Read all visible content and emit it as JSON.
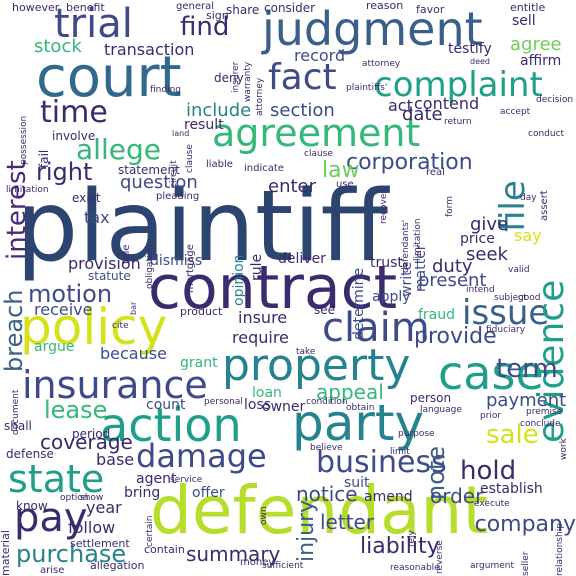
{
  "palette": {
    "navy": "#2b4570",
    "deep_purple": "#3b2a6e",
    "purple": "#482878",
    "indigo": "#3e4a89",
    "blue": "#31688e",
    "steel": "#3a5f8a",
    "teal": "#26828e",
    "green_teal": "#1f9e89",
    "green": "#35b779",
    "lime": "#6ece58",
    "yellow_green": "#b5de2b",
    "yellow": "#d5e21a"
  },
  "words": [
    {
      "text": "plaintiff",
      "color": "#2b4570"
    },
    {
      "text": "defendant",
      "color": "#b5de2b"
    },
    {
      "text": "contract",
      "color": "#3b2a6e"
    },
    {
      "text": "court",
      "color": "#31688e"
    },
    {
      "text": "judgment",
      "color": "#3a5f8a"
    },
    {
      "text": "policy",
      "color": "#d5e21a"
    },
    {
      "text": "party",
      "color": "#26828e"
    },
    {
      "text": "action",
      "color": "#1f9e89"
    },
    {
      "text": "property",
      "color": "#26828e"
    },
    {
      "text": "agreement",
      "color": "#35b779"
    },
    {
      "text": "claim",
      "color": "#3e4a89"
    },
    {
      "text": "case",
      "color": "#1f9e89"
    },
    {
      "text": "insurance",
      "color": "#3e4a89"
    },
    {
      "text": "trial",
      "color": "#3e4a89"
    },
    {
      "text": "fact",
      "color": "#3e4a89"
    },
    {
      "text": "complaint",
      "color": "#1f9e89"
    },
    {
      "text": "state",
      "color": "#1f9e89"
    },
    {
      "text": "issue",
      "color": "#3a5f8a"
    },
    {
      "text": "damage",
      "color": "#3e4a89"
    },
    {
      "text": "business",
      "color": "#3e4a89"
    },
    {
      "text": "pay",
      "color": "#3b2a6e"
    },
    {
      "text": "evidence",
      "color": "#1f9e89"
    },
    {
      "text": "file",
      "color": "#26828e"
    },
    {
      "text": "allege",
      "color": "#35b779"
    },
    {
      "text": "time",
      "color": "#3b2a6e"
    },
    {
      "text": "right",
      "color": "#3b2a6e"
    },
    {
      "text": "find",
      "color": "#3b2a6e"
    },
    {
      "text": "sale",
      "color": "#d5e21a"
    },
    {
      "text": "term",
      "color": "#3e4a89"
    },
    {
      "text": "motion",
      "color": "#3e4a89"
    },
    {
      "text": "hold",
      "color": "#3b2a6e"
    },
    {
      "text": "purchase",
      "color": "#26828e"
    },
    {
      "text": "corporation",
      "color": "#3e4a89"
    },
    {
      "text": "provide",
      "color": "#3e4a89"
    },
    {
      "text": "lease",
      "color": "#35b779"
    },
    {
      "text": "law",
      "color": "#6ece58"
    },
    {
      "text": "interest",
      "color": "#482878"
    },
    {
      "text": "breach",
      "color": "#3a5f8a"
    },
    {
      "text": "appeal",
      "color": "#35b779"
    },
    {
      "text": "liability",
      "color": "#3b2a6e"
    },
    {
      "text": "company",
      "color": "#3e4a89"
    },
    {
      "text": "coverage",
      "color": "#3b2a6e"
    },
    {
      "text": "payment",
      "color": "#3e4a89"
    },
    {
      "text": "summary",
      "color": "#3b2a6e"
    },
    {
      "text": "order",
      "color": "#3e4a89"
    },
    {
      "text": "notice",
      "color": "#3e4a89"
    },
    {
      "text": "letter",
      "color": "#3e4a89"
    },
    {
      "text": "injury",
      "color": "#3a5f8a"
    },
    {
      "text": "note",
      "color": "#3a5f8a"
    },
    {
      "text": "question",
      "color": "#3e4a89"
    },
    {
      "text": "section",
      "color": "#3e4a89"
    },
    {
      "text": "include",
      "color": "#26828e"
    },
    {
      "text": "stock",
      "color": "#35b779"
    },
    {
      "text": "transaction",
      "color": "#3b2a6e"
    },
    {
      "text": "record",
      "color": "#3e4a89"
    },
    {
      "text": "date",
      "color": "#3b2a6e"
    },
    {
      "text": "act",
      "color": "#3b2a6e"
    },
    {
      "text": "contend",
      "color": "#3b2a6e"
    },
    {
      "text": "agree",
      "color": "#6ece58"
    },
    {
      "text": "sell",
      "color": "#3b2a6e"
    },
    {
      "text": "testify",
      "color": "#3b2a6e"
    },
    {
      "text": "affirm",
      "color": "#3b2a6e"
    },
    {
      "text": "result",
      "color": "#3b2a6e"
    },
    {
      "text": "enter",
      "color": "#3b2a6e"
    },
    {
      "text": "tax",
      "color": "#3e4a89"
    },
    {
      "text": "provision",
      "color": "#3b2a6e"
    },
    {
      "text": "receive",
      "color": "#3e4a89"
    },
    {
      "text": "argue",
      "color": "#35b779"
    },
    {
      "text": "insure",
      "color": "#3b2a6e"
    },
    {
      "text": "require",
      "color": "#3b2a6e"
    },
    {
      "text": "because",
      "color": "#3e4a89"
    },
    {
      "text": "count",
      "color": "#3e4a89"
    },
    {
      "text": "base",
      "color": "#3b2a6e"
    },
    {
      "text": "agent",
      "color": "#3b2a6e"
    },
    {
      "text": "bring",
      "color": "#3b2a6e"
    },
    {
      "text": "offer",
      "color": "#3e4a89"
    },
    {
      "text": "year",
      "color": "#3b2a6e"
    },
    {
      "text": "follow",
      "color": "#3b2a6e"
    },
    {
      "text": "duty",
      "color": "#3b2a6e"
    },
    {
      "text": "give",
      "color": "#3b2a6e"
    },
    {
      "text": "seek",
      "color": "#3b2a6e"
    },
    {
      "text": "present",
      "color": "#3e4a89"
    },
    {
      "text": "say",
      "color": "#d5e21a"
    },
    {
      "text": "price",
      "color": "#3b2a6e"
    },
    {
      "text": "fraud",
      "color": "#35b779"
    },
    {
      "text": "apply",
      "color": "#3e4a89"
    },
    {
      "text": "trust",
      "color": "#3b2a6e"
    },
    {
      "text": "deliver",
      "color": "#3b2a6e"
    },
    {
      "text": "dismiss",
      "color": "#3e4a89"
    },
    {
      "text": "statute",
      "color": "#3e4a89"
    },
    {
      "text": "opinion",
      "color": "#26828e"
    },
    {
      "text": "rule",
      "color": "#3b2a6e"
    },
    {
      "text": "determine",
      "color": "#3e4a89"
    },
    {
      "text": "write",
      "color": "#3e4a89"
    },
    {
      "text": "matter",
      "color": "#3e4a89"
    },
    {
      "text": "person",
      "color": "#3b2a6e"
    },
    {
      "text": "loss",
      "color": "#3b2a6e"
    },
    {
      "text": "owner",
      "color": "#3b2a6e"
    },
    {
      "text": "grant",
      "color": "#35b779"
    },
    {
      "text": "loan",
      "color": "#35b779"
    },
    {
      "text": "see",
      "color": "#3b2a6e"
    },
    {
      "text": "suit",
      "color": "#3e4a89"
    },
    {
      "text": "amend",
      "color": "#3b2a6e"
    },
    {
      "text": "establish",
      "color": "#3b2a6e"
    },
    {
      "text": "period",
      "color": "#3b2a6e"
    },
    {
      "text": "shall",
      "color": "#3b2a6e"
    },
    {
      "text": "defense",
      "color": "#3b2a6e"
    },
    {
      "text": "know",
      "color": "#3b2a6e"
    },
    {
      "text": "exist",
      "color": "#3b2a6e"
    },
    {
      "text": "statement",
      "color": "#3b2a6e"
    },
    {
      "text": "involve",
      "color": "#3b2a6e"
    },
    {
      "text": "fail",
      "color": "#3b2a6e"
    },
    {
      "text": "deny",
      "color": "#3b2a6e"
    },
    {
      "text": "share",
      "color": "#3b2a6e"
    },
    {
      "text": "consider",
      "color": "#3b2a6e"
    },
    {
      "text": "sign",
      "color": "#3b2a6e"
    },
    {
      "text": "reason",
      "color": "#3b2a6e"
    },
    {
      "text": "favor",
      "color": "#3b2a6e"
    },
    {
      "text": "entitle",
      "color": "#3b2a6e"
    },
    {
      "text": "however",
      "color": "#3b2a6e"
    },
    {
      "text": "benefit",
      "color": "#3b2a6e"
    },
    {
      "text": "general",
      "color": "#3b2a6e"
    },
    {
      "text": "material",
      "color": "#3b2a6e"
    },
    {
      "text": "settlement",
      "color": "#3b2a6e"
    },
    {
      "text": "allegation",
      "color": "#3b2a6e"
    },
    {
      "text": "contain",
      "color": "#3b2a6e"
    },
    {
      "text": "money",
      "color": "#3b2a6e"
    },
    {
      "text": "arise",
      "color": "#3b2a6e"
    },
    {
      "text": "liable",
      "color": "#3b2a6e"
    },
    {
      "text": "indicate",
      "color": "#3b2a6e"
    },
    {
      "text": "pleading",
      "color": "#3b2a6e"
    },
    {
      "text": "mortgage",
      "color": "#3b2a6e"
    },
    {
      "text": "obligation",
      "color": "#3b2a6e"
    },
    {
      "text": "title",
      "color": "#3b2a6e"
    },
    {
      "text": "circuit",
      "color": "#3b2a6e"
    },
    {
      "text": "clause",
      "color": "#3b2a6e"
    },
    {
      "text": "recover",
      "color": "#3b2a6e"
    },
    {
      "text": "real",
      "color": "#3b2a6e"
    },
    {
      "text": "use",
      "color": "#3b2a6e"
    },
    {
      "text": "day",
      "color": "#3b2a6e"
    },
    {
      "text": "valid",
      "color": "#3b2a6e"
    },
    {
      "text": "intend",
      "color": "#3b2a6e"
    },
    {
      "text": "subject",
      "color": "#3b2a6e"
    },
    {
      "text": "good",
      "color": "#3b2a6e"
    },
    {
      "text": "fiduciary",
      "color": "#3b2a6e"
    },
    {
      "text": "relationship",
      "color": "#3b2a6e"
    },
    {
      "text": "premise",
      "color": "#3b2a6e"
    },
    {
      "text": "conclude",
      "color": "#3b2a6e"
    },
    {
      "text": "prior",
      "color": "#3b2a6e"
    },
    {
      "text": "language",
      "color": "#3b2a6e"
    },
    {
      "text": "reverse",
      "color": "#3b2a6e"
    },
    {
      "text": "purpose",
      "color": "#3b2a6e"
    },
    {
      "text": "limit",
      "color": "#3b2a6e"
    },
    {
      "text": "obtain",
      "color": "#3b2a6e"
    },
    {
      "text": "condition",
      "color": "#3b2a6e"
    },
    {
      "text": "take",
      "color": "#3b2a6e"
    },
    {
      "text": "believe",
      "color": "#3b2a6e"
    },
    {
      "text": "own",
      "color": "#3b2a6e"
    },
    {
      "text": "service",
      "color": "#3b2a6e"
    },
    {
      "text": "personal",
      "color": "#3b2a6e"
    },
    {
      "text": "certain",
      "color": "#3b2a6e"
    },
    {
      "text": "show",
      "color": "#3b2a6e"
    },
    {
      "text": "option",
      "color": "#3b2a6e"
    },
    {
      "text": "rely",
      "color": "#3b2a6e"
    },
    {
      "text": "execute",
      "color": "#3b2a6e"
    },
    {
      "text": "seller",
      "color": "#3b2a6e"
    },
    {
      "text": "work",
      "color": "#3b2a6e"
    },
    {
      "text": "argument",
      "color": "#3b2a6e"
    },
    {
      "text": "reasonable",
      "color": "#3b2a6e"
    },
    {
      "text": "sufficient",
      "color": "#3b2a6e"
    },
    {
      "text": "cite",
      "color": "#3b2a6e"
    },
    {
      "text": "bar",
      "color": "#3b2a6e"
    },
    {
      "text": "product",
      "color": "#3b2a6e"
    },
    {
      "text": "insurer",
      "color": "#3b2a6e"
    },
    {
      "text": "warranty",
      "color": "#3b2a6e"
    },
    {
      "text": "attorney",
      "color": "#3b2a6e"
    },
    {
      "text": "plaintiffs'",
      "color": "#3b2a6e"
    },
    {
      "text": "finding",
      "color": "#3b2a6e"
    },
    {
      "text": "land",
      "color": "#3b2a6e"
    },
    {
      "text": "deed",
      "color": "#3b2a6e"
    },
    {
      "text": "accept",
      "color": "#3b2a6e"
    },
    {
      "text": "return",
      "color": "#3b2a6e"
    },
    {
      "text": "decision",
      "color": "#3b2a6e"
    },
    {
      "text": "conduct",
      "color": "#3b2a6e"
    },
    {
      "text": "form",
      "color": "#3b2a6e"
    },
    {
      "text": "assert",
      "color": "#3b2a6e"
    },
    {
      "text": "defendants'",
      "color": "#3b2a6e"
    },
    {
      "text": "limitation",
      "color": "#3b2a6e"
    },
    {
      "text": "possession",
      "color": "#3b2a6e"
    },
    {
      "text": "document",
      "color": "#3b2a6e"
    },
    {
      "text": "legal",
      "color": "#3b2a6e"
    },
    {
      "text": "support",
      "color": "#3b2a6e"
    },
    {
      "text": "affidavit",
      "color": "#3b2a6e"
    }
  ]
}
